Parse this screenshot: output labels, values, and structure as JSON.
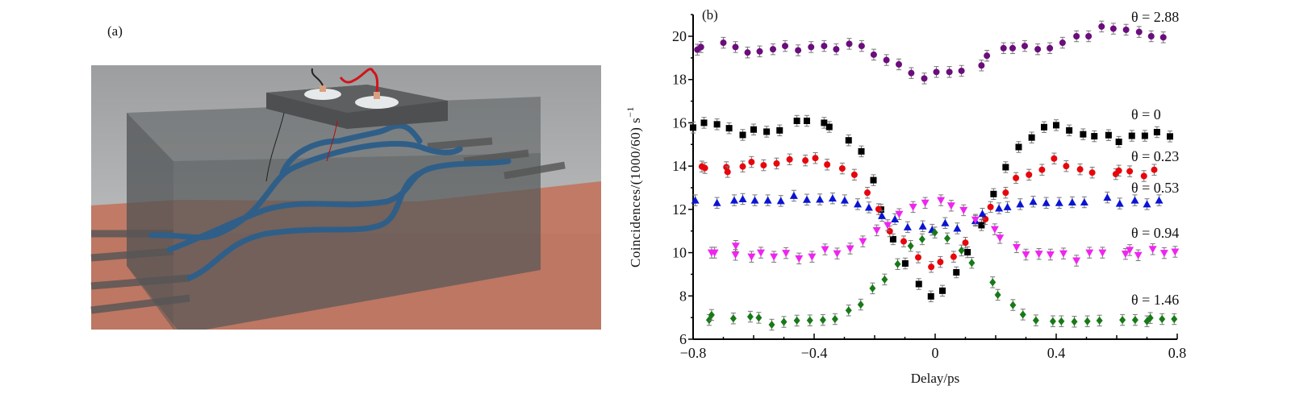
{
  "panel_a": {
    "label": "(a)"
  },
  "chart_data": {
    "type": "scatter",
    "panel_label": "(b)",
    "xlabel": "Delay/ps",
    "ylabel": "Coincidences/(1000/60) s",
    "ylabel_superscript": "−1",
    "xlim": [
      -0.8,
      0.8
    ],
    "ylim": [
      6,
      21
    ],
    "xticks": [
      "−0.8",
      "−0.4",
      "0",
      "0.4",
      "0.8"
    ],
    "xtick_values": [
      -0.8,
      -0.4,
      0,
      0.4,
      0.8
    ],
    "yticks": [
      "6",
      "8",
      "10",
      "12",
      "14",
      "16",
      "18",
      "20"
    ],
    "ytick_values": [
      6,
      8,
      10,
      12,
      14,
      16,
      18,
      20
    ],
    "grid": false,
    "error_bar": 0.25,
    "series": [
      {
        "name": "θ = 2.88",
        "color": "#6b0d7c",
        "marker": "circle",
        "points": [
          [
            -0.786,
            19.38
          ],
          [
            -0.774,
            19.5
          ],
          [
            -0.7,
            19.7
          ],
          [
            -0.66,
            19.5
          ],
          [
            -0.62,
            19.25
          ],
          [
            -0.58,
            19.3
          ],
          [
            -0.536,
            19.4
          ],
          [
            -0.496,
            19.55
          ],
          [
            -0.453,
            19.35
          ],
          [
            -0.41,
            19.5
          ],
          [
            -0.367,
            19.55
          ],
          [
            -0.327,
            19.4
          ],
          [
            -0.284,
            19.65
          ],
          [
            -0.243,
            19.55
          ],
          [
            -0.203,
            19.15
          ],
          [
            -0.161,
            18.9
          ],
          [
            -0.12,
            18.7
          ],
          [
            -0.079,
            18.3
          ],
          [
            -0.036,
            18.05
          ],
          [
            0.004,
            18.35
          ],
          [
            0.047,
            18.35
          ],
          [
            0.087,
            18.4
          ],
          [
            0.153,
            18.65
          ],
          [
            0.171,
            19.1
          ],
          [
            0.226,
            19.45
          ],
          [
            0.256,
            19.45
          ],
          [
            0.296,
            19.55
          ],
          [
            0.339,
            19.4
          ],
          [
            0.379,
            19.45
          ],
          [
            0.421,
            19.7
          ],
          [
            0.467,
            20.0
          ],
          [
            0.507,
            20.0
          ],
          [
            0.55,
            20.45
          ],
          [
            0.589,
            20.35
          ],
          [
            0.631,
            20.3
          ],
          [
            0.674,
            20.2
          ],
          [
            0.714,
            20.0
          ],
          [
            0.754,
            19.95
          ]
        ]
      },
      {
        "name": "θ = 0",
        "color": "#000000",
        "marker": "square",
        "points": [
          [
            -0.8,
            15.78
          ],
          [
            -0.764,
            16.0
          ],
          [
            -0.721,
            15.93
          ],
          [
            -0.681,
            15.75
          ],
          [
            -0.636,
            15.44
          ],
          [
            -0.6,
            15.69
          ],
          [
            -0.557,
            15.59
          ],
          [
            -0.514,
            15.65
          ],
          [
            -0.457,
            16.09
          ],
          [
            -0.424,
            16.09
          ],
          [
            -0.367,
            16.0
          ],
          [
            -0.35,
            15.81
          ],
          [
            -0.286,
            15.19
          ],
          [
            -0.244,
            14.68
          ],
          [
            -0.204,
            13.35
          ],
          [
            -0.179,
            11.99
          ],
          [
            -0.139,
            10.62
          ],
          [
            -0.099,
            9.5
          ],
          [
            -0.054,
            8.55
          ],
          [
            -0.014,
            7.98
          ],
          [
            0.024,
            8.24
          ],
          [
            0.07,
            9.09
          ],
          [
            0.107,
            10.02
          ],
          [
            0.153,
            11.27
          ],
          [
            0.193,
            12.71
          ],
          [
            0.233,
            13.95
          ],
          [
            0.276,
            14.88
          ],
          [
            0.319,
            15.32
          ],
          [
            0.36,
            15.8
          ],
          [
            0.4,
            15.89
          ],
          [
            0.443,
            15.65
          ],
          [
            0.489,
            15.47
          ],
          [
            0.526,
            15.38
          ],
          [
            0.573,
            15.43
          ],
          [
            0.607,
            15.12
          ],
          [
            0.65,
            15.4
          ],
          [
            0.693,
            15.4
          ],
          [
            0.733,
            15.57
          ],
          [
            0.776,
            15.37
          ]
        ]
      },
      {
        "name": "θ = 0.23",
        "color": "#e8060c",
        "marker": "circle",
        "points": [
          [
            -0.771,
            13.98
          ],
          [
            -0.761,
            13.91
          ],
          [
            -0.69,
            13.95
          ],
          [
            -0.686,
            13.73
          ],
          [
            -0.636,
            13.98
          ],
          [
            -0.607,
            14.19
          ],
          [
            -0.567,
            14.04
          ],
          [
            -0.524,
            14.12
          ],
          [
            -0.481,
            14.31
          ],
          [
            -0.429,
            14.26
          ],
          [
            -0.396,
            14.37
          ],
          [
            -0.357,
            14.07
          ],
          [
            -0.307,
            13.89
          ],
          [
            -0.267,
            13.6
          ],
          [
            -0.224,
            12.77
          ],
          [
            -0.187,
            12.01
          ],
          [
            -0.15,
            10.99
          ],
          [
            -0.104,
            10.52
          ],
          [
            -0.056,
            9.78
          ],
          [
            -0.013,
            9.34
          ],
          [
            0.017,
            9.57
          ],
          [
            0.061,
            9.81
          ],
          [
            0.1,
            10.46
          ],
          [
            0.166,
            11.55
          ],
          [
            0.183,
            12.11
          ],
          [
            0.233,
            12.77
          ],
          [
            0.267,
            13.45
          ],
          [
            0.31,
            13.6
          ],
          [
            0.353,
            13.83
          ],
          [
            0.393,
            14.35
          ],
          [
            0.433,
            14.0
          ],
          [
            0.479,
            13.85
          ],
          [
            0.519,
            13.7
          ],
          [
            0.597,
            13.63
          ],
          [
            0.607,
            13.79
          ],
          [
            0.643,
            13.76
          ],
          [
            0.69,
            13.54
          ],
          [
            0.724,
            13.83
          ]
        ]
      },
      {
        "name": "θ = 0.53",
        "color": "#0a14d4",
        "marker": "triangle-up",
        "points": [
          [
            -0.793,
            12.42
          ],
          [
            -0.721,
            12.3
          ],
          [
            -0.664,
            12.42
          ],
          [
            -0.636,
            12.48
          ],
          [
            -0.596,
            12.42
          ],
          [
            -0.553,
            12.42
          ],
          [
            -0.51,
            12.39
          ],
          [
            -0.467,
            12.63
          ],
          [
            -0.424,
            12.45
          ],
          [
            -0.381,
            12.46
          ],
          [
            -0.339,
            12.51
          ],
          [
            -0.299,
            12.42
          ],
          [
            -0.256,
            12.24
          ],
          [
            -0.219,
            12.09
          ],
          [
            -0.176,
            11.7
          ],
          [
            -0.133,
            11.55
          ],
          [
            -0.091,
            11.18
          ],
          [
            -0.041,
            11.22
          ],
          [
            -0.01,
            11.06
          ],
          [
            0.033,
            11.37
          ],
          [
            0.073,
            11.12
          ],
          [
            0.133,
            11.47
          ],
          [
            0.156,
            11.8
          ],
          [
            0.211,
            12.05
          ],
          [
            0.239,
            12.11
          ],
          [
            0.281,
            12.24
          ],
          [
            0.324,
            12.36
          ],
          [
            0.367,
            12.3
          ],
          [
            0.41,
            12.3
          ],
          [
            0.453,
            12.33
          ],
          [
            0.493,
            12.33
          ],
          [
            0.569,
            12.55
          ],
          [
            0.61,
            12.27
          ],
          [
            0.66,
            12.42
          ],
          [
            0.7,
            12.24
          ],
          [
            0.74,
            12.42
          ]
        ]
      },
      {
        "name": "θ = 0.94",
        "color": "#f024f0",
        "marker": "triangle-down",
        "points": [
          [
            -0.739,
            10.0
          ],
          [
            -0.729,
            10.0
          ],
          [
            -0.659,
            10.31
          ],
          [
            -0.66,
            9.9
          ],
          [
            -0.607,
            9.81
          ],
          [
            -0.576,
            10.0
          ],
          [
            -0.533,
            9.81
          ],
          [
            -0.493,
            9.98
          ],
          [
            -0.45,
            9.73
          ],
          [
            -0.407,
            9.81
          ],
          [
            -0.364,
            10.15
          ],
          [
            -0.324,
            9.96
          ],
          [
            -0.281,
            10.19
          ],
          [
            -0.239,
            10.52
          ],
          [
            -0.193,
            11.03
          ],
          [
            -0.157,
            11.27
          ],
          [
            -0.119,
            11.78
          ],
          [
            -0.073,
            12.11
          ],
          [
            -0.033,
            12.3
          ],
          [
            0.019,
            12.42
          ],
          [
            0.053,
            12.17
          ],
          [
            0.094,
            11.96
          ],
          [
            0.133,
            11.52
          ],
          [
            0.197,
            11.08
          ],
          [
            0.214,
            10.68
          ],
          [
            0.269,
            10.25
          ],
          [
            0.3,
            9.91
          ],
          [
            0.343,
            9.94
          ],
          [
            0.381,
            9.91
          ],
          [
            0.424,
            9.96
          ],
          [
            0.467,
            9.63
          ],
          [
            0.51,
            10.0
          ],
          [
            0.553,
            10.0
          ],
          [
            0.629,
            9.94
          ],
          [
            0.643,
            10.12
          ],
          [
            0.671,
            9.88
          ],
          [
            0.719,
            10.16
          ],
          [
            0.757,
            9.98
          ],
          [
            0.793,
            10.04
          ]
        ]
      },
      {
        "name": "θ = 1.46",
        "color": "#177a17",
        "marker": "diamond",
        "points": [
          [
            -0.747,
            6.89
          ],
          [
            -0.739,
            7.12
          ],
          [
            -0.667,
            6.96
          ],
          [
            -0.611,
            7.04
          ],
          [
            -0.583,
            6.99
          ],
          [
            -0.54,
            6.67
          ],
          [
            -0.5,
            6.8
          ],
          [
            -0.457,
            6.86
          ],
          [
            -0.414,
            6.87
          ],
          [
            -0.371,
            6.89
          ],
          [
            -0.331,
            6.93
          ],
          [
            -0.286,
            7.33
          ],
          [
            -0.246,
            7.6
          ],
          [
            -0.207,
            8.35
          ],
          [
            -0.167,
            8.76
          ],
          [
            -0.124,
            9.47
          ],
          [
            -0.081,
            10.31
          ],
          [
            -0.043,
            10.62
          ],
          [
            -0.001,
            10.93
          ],
          [
            0.04,
            10.66
          ],
          [
            0.087,
            10.1
          ],
          [
            0.121,
            9.53
          ],
          [
            0.19,
            8.63
          ],
          [
            0.207,
            8.05
          ],
          [
            0.257,
            7.58
          ],
          [
            0.29,
            7.14
          ],
          [
            0.333,
            6.87
          ],
          [
            0.389,
            6.83
          ],
          [
            0.417,
            6.83
          ],
          [
            0.46,
            6.81
          ],
          [
            0.503,
            6.83
          ],
          [
            0.543,
            6.86
          ],
          [
            0.619,
            6.89
          ],
          [
            0.661,
            6.89
          ],
          [
            0.7,
            6.83
          ],
          [
            0.711,
            6.98
          ],
          [
            0.75,
            6.93
          ],
          [
            0.79,
            6.93
          ]
        ]
      }
    ]
  }
}
